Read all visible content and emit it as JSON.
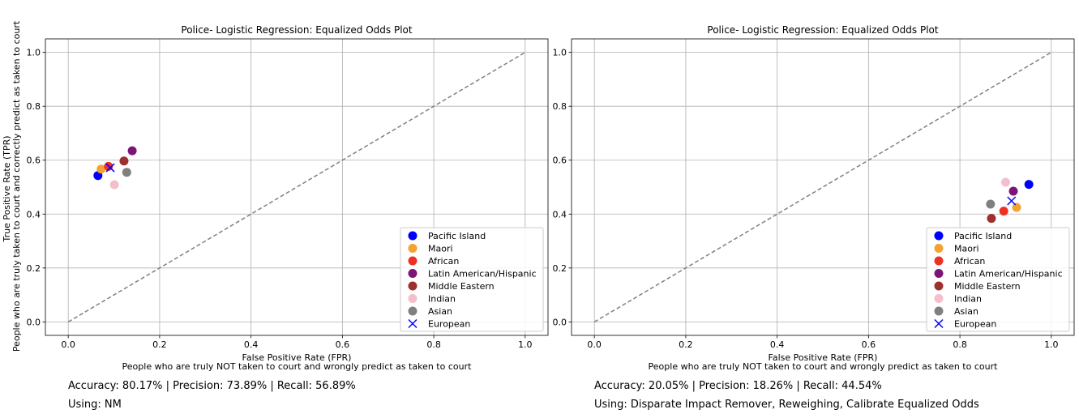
{
  "chart_data": [
    {
      "type": "scatter",
      "title": "Police- Logistic Regression: Equalized Odds Plot",
      "xlabel_line1": "False Positive Rate (FPR)",
      "xlabel_line2": "People who are truly NOT taken to court and wrongly predict as taken to court",
      "ylabel_line1": "True Positive Rate (TPR)",
      "ylabel_line2": "People who are truly taken to court and correctly predict as taken to court",
      "xlim": [
        -0.05,
        1.05
      ],
      "ylim": [
        -0.05,
        1.05
      ],
      "xticks": [
        "0.0",
        "0.2",
        "0.4",
        "0.6",
        "0.8",
        "1.0"
      ],
      "yticks": [
        "0.0",
        "0.2",
        "0.4",
        "0.6",
        "0.8",
        "1.0"
      ],
      "grid": true,
      "reference_line": {
        "x": [
          0,
          1
        ],
        "y": [
          0,
          1
        ],
        "style": "dashed",
        "color": "#808080"
      },
      "legend_position": "lower-right",
      "series": [
        {
          "name": "Pacific Island",
          "marker": "circle",
          "color": "#0000ff",
          "x": 0.065,
          "y": 0.543
        },
        {
          "name": "Maori",
          "marker": "circle",
          "color": "#f4a230",
          "x": 0.072,
          "y": 0.567
        },
        {
          "name": "African",
          "marker": "circle",
          "color": "#ee3124",
          "x": 0.088,
          "y": 0.577
        },
        {
          "name": "Latin American/Hispanic",
          "marker": "circle",
          "color": "#7b1677",
          "x": 0.14,
          "y": 0.635
        },
        {
          "name": "Middle Eastern",
          "marker": "circle",
          "color": "#9e302e",
          "x": 0.122,
          "y": 0.597
        },
        {
          "name": "Indian",
          "marker": "circle",
          "color": "#f4bfcc",
          "x": 0.101,
          "y": 0.509
        },
        {
          "name": "Asian",
          "marker": "circle",
          "color": "#808080",
          "x": 0.128,
          "y": 0.555
        },
        {
          "name": "European",
          "marker": "x",
          "color": "#0000ff",
          "x": 0.092,
          "y": 0.572
        }
      ],
      "metrics": "Accuracy: 80.17% | Precision: 73.89% | Recall: 56.89%",
      "using": "Using: NM"
    },
    {
      "type": "scatter",
      "title": "Police- Logistic Regression: Equalized Odds Plot",
      "xlabel_line1": "False Positive Rate (FPR)",
      "xlabel_line2": "People who are truly NOT taken to court and wrongly predict as taken to court",
      "xlim": [
        -0.05,
        1.05
      ],
      "ylim": [
        -0.05,
        1.05
      ],
      "xticks": [
        "0.0",
        "0.2",
        "0.4",
        "0.6",
        "0.8",
        "1.0"
      ],
      "yticks": [
        "0.0",
        "0.2",
        "0.4",
        "0.6",
        "0.8",
        "1.0"
      ],
      "grid": true,
      "reference_line": {
        "x": [
          0,
          1
        ],
        "y": [
          0,
          1
        ],
        "style": "dashed",
        "color": "#808080"
      },
      "legend_position": "lower-right",
      "series": [
        {
          "name": "Pacific Island",
          "marker": "circle",
          "color": "#0000ff",
          "x": 0.951,
          "y": 0.51
        },
        {
          "name": "Maori",
          "marker": "circle",
          "color": "#f4a230",
          "x": 0.924,
          "y": 0.425
        },
        {
          "name": "African",
          "marker": "circle",
          "color": "#ee3124",
          "x": 0.896,
          "y": 0.411
        },
        {
          "name": "Latin American/Hispanic",
          "marker": "circle",
          "color": "#7b1677",
          "x": 0.917,
          "y": 0.485
        },
        {
          "name": "Middle Eastern",
          "marker": "circle",
          "color": "#9e302e",
          "x": 0.869,
          "y": 0.384
        },
        {
          "name": "Indian",
          "marker": "circle",
          "color": "#f4bfcc",
          "x": 0.9,
          "y": 0.518
        },
        {
          "name": "Asian",
          "marker": "circle",
          "color": "#808080",
          "x": 0.867,
          "y": 0.437
        },
        {
          "name": "European",
          "marker": "x",
          "color": "#0000ff",
          "x": 0.913,
          "y": 0.449
        }
      ],
      "metrics": "Accuracy: 20.05% | Precision: 18.26% | Recall: 44.54%",
      "using": "Using: Disparate Impact Remover, Reweighing, Calibrate Equalized Odds"
    }
  ]
}
